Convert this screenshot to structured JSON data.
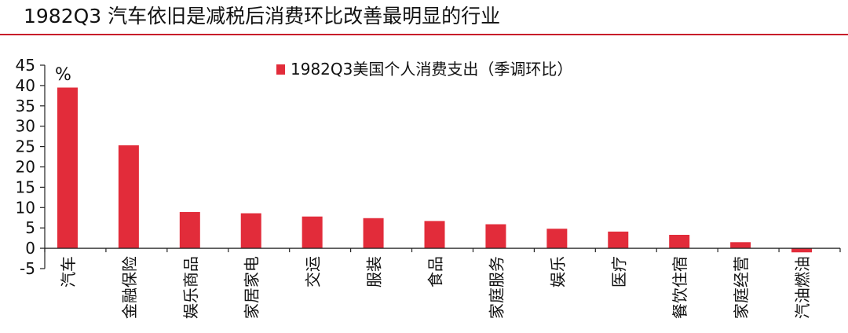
{
  "header": {
    "title": "1982Q3 汽车依旧是减税后消费环比改善最明显的行业"
  },
  "colors": {
    "accent": "#c81e2a",
    "bar": "#e22c3a"
  },
  "chart_data": {
    "type": "bar",
    "title": "",
    "xlabel": "",
    "ylabel": "%",
    "ylim": [
      -5,
      45
    ],
    "yticks": [
      -5,
      0,
      5,
      10,
      15,
      20,
      25,
      30,
      35,
      40,
      45
    ],
    "grid": false,
    "legend_position": "top-center",
    "categories": [
      "汽车",
      "金融保险",
      "娱乐商品",
      "家居家电",
      "交运",
      "服装",
      "食品",
      "家庭服务",
      "娱乐",
      "医疗",
      "餐饮住宿",
      "家庭经营",
      "汽油燃油"
    ],
    "series": [
      {
        "name": "1982Q3美国个人消费支出（季调环比）",
        "color": "#e22c3a",
        "values": [
          39.5,
          25.3,
          8.9,
          8.6,
          7.8,
          7.4,
          6.7,
          5.9,
          4.8,
          4.1,
          3.3,
          1.5,
          -1.0
        ]
      }
    ]
  }
}
